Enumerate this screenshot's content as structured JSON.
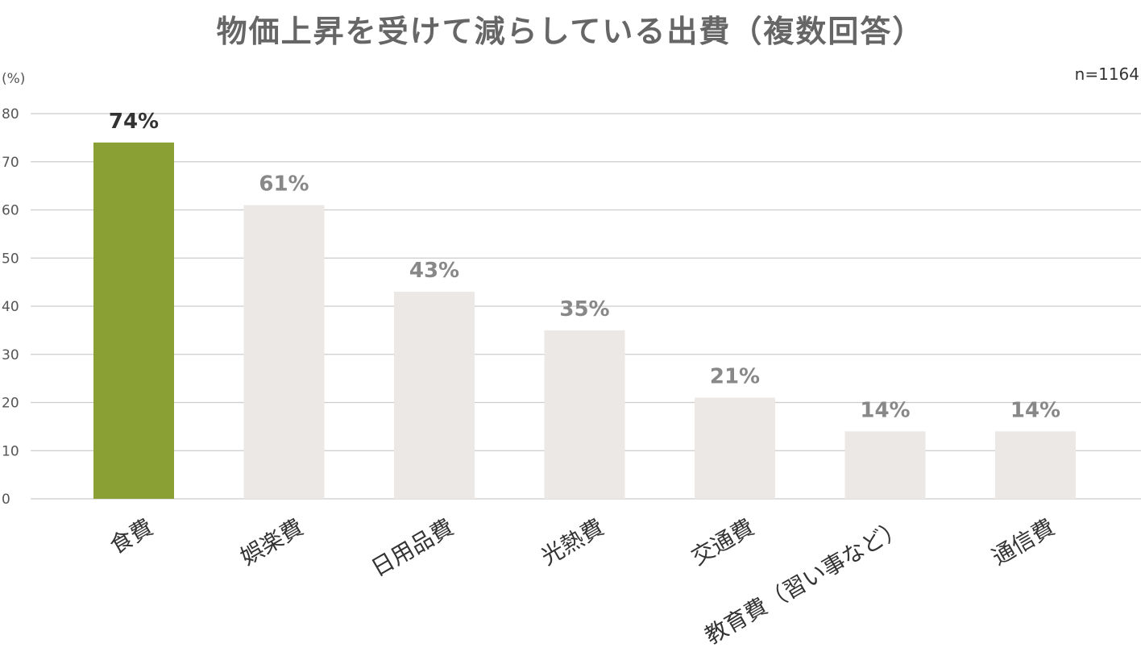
{
  "chart_data": {
    "type": "bar",
    "title": "物価上昇を受けて減らしている出費（複数回答）",
    "unit_label": "(%)",
    "sample_label": "n=1164",
    "categories": [
      "食費",
      "娯楽費",
      "日用品費",
      "光熱費",
      "交通費",
      "教育費（習い事など）",
      "通信費"
    ],
    "values": [
      74,
      61,
      43,
      35,
      21,
      14,
      14
    ],
    "value_labels": [
      "74%",
      "61%",
      "43%",
      "35%",
      "21%",
      "14%",
      "14%"
    ],
    "ylim": [
      0,
      80
    ],
    "yticks": [
      "0",
      "10",
      "20",
      "30",
      "40",
      "50",
      "60",
      "70",
      "80"
    ],
    "grid": true,
    "colors": {
      "highlight": "#8ba034",
      "bar": "#ebe8e5",
      "highlight_label": "#333333",
      "label": "#888888",
      "grid": "#cccccc"
    }
  }
}
